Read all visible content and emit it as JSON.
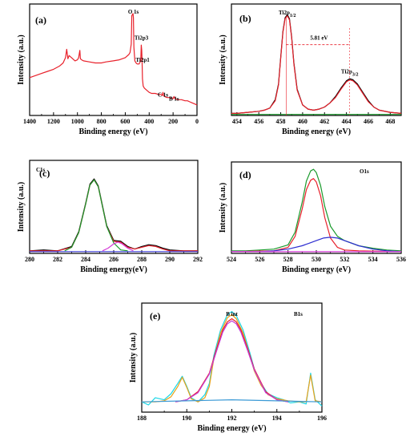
{
  "chart_data": [
    {
      "type": "line",
      "panel_label": "(a)",
      "xlabel": "Binding energy (eV)",
      "ylabel": "Intensity (a.u.)",
      "xlim": [
        1400,
        0
      ],
      "x_ticks": [
        1400,
        1200,
        1000,
        800,
        600,
        400,
        200,
        0
      ],
      "ylim": [
        0,
        100
      ],
      "annotations": [
        {
          "text": "O 1s",
          "x": 532,
          "y": 97
        },
        {
          "text": "Ti2p3",
          "x": 465,
          "y": 72
        },
        {
          "text": "Ti2p1",
          "x": 455,
          "y": 51
        },
        {
          "text": "C 1s",
          "x": 285,
          "y": 18
        },
        {
          "text": "B 1s",
          "x": 192,
          "y": 14
        }
      ],
      "series": [
        {
          "color": "#e8212b",
          "x": [
            1400,
            1350,
            1300,
            1250,
            1200,
            1150,
            1120,
            1100,
            1090,
            1080,
            1070,
            1050,
            1020,
            1000,
            990,
            980,
            975,
            965,
            950,
            900,
            850,
            800,
            760,
            700,
            650,
            600,
            570,
            560,
            550,
            545,
            535,
            532,
            528,
            520,
            510,
            500,
            485,
            470,
            466,
            462,
            460,
            458,
            456,
            450,
            440,
            420,
            400,
            380,
            350,
            320,
            300,
            290,
            285,
            280,
            270,
            250,
            230,
            200,
            192,
            185,
            160,
            130,
            100,
            80,
            60,
            40,
            20,
            0
          ],
          "y": [
            36,
            38,
            40,
            42,
            44,
            47,
            50,
            55,
            63,
            54,
            57,
            55,
            52,
            53,
            55,
            62,
            54,
            53,
            52,
            51,
            50,
            50,
            51,
            52,
            53,
            55,
            58,
            60,
            68,
            95,
            97,
            93,
            65,
            52,
            50,
            49,
            49,
            52,
            67,
            62,
            55,
            46,
            35,
            28,
            26,
            24,
            22,
            21,
            21,
            20,
            20,
            19,
            22,
            19,
            18,
            17,
            17,
            16,
            18,
            16,
            15,
            15,
            14,
            14,
            13,
            12,
            11,
            10
          ]
        }
      ]
    },
    {
      "type": "line",
      "panel_label": "(b)",
      "xlabel": "Binding energy (eV)",
      "ylabel": "Intensity (a.u.)",
      "xlim": [
        453.5,
        469
      ],
      "x_ticks": [
        454,
        456,
        458,
        460,
        462,
        464,
        466,
        468
      ],
      "ylim": [
        0,
        100
      ],
      "annotations": [
        {
          "text": "Ti2p",
          "sub": "1/2",
          "x": 458.6,
          "y": 96
        },
        {
          "text": "Ti2p",
          "sub": "3/2",
          "x": 464.3,
          "y": 40
        },
        {
          "text": "5.81 eV",
          "x": 461.5,
          "y": 72
        }
      ],
      "spacing_arrow": {
        "from": 458.5,
        "to": 464.3,
        "y": 72
      },
      "series": [
        {
          "color": "#000000",
          "x": [
            453.5,
            454,
            455,
            456,
            456.5,
            457,
            457.5,
            457.8,
            458,
            458.2,
            458.4,
            458.6,
            458.8,
            459,
            459.2,
            459.5,
            460,
            460.5,
            461,
            461.5,
            462,
            462.5,
            463,
            463.5,
            464,
            464.3,
            464.6,
            465,
            465.5,
            466,
            466.5,
            467,
            468,
            469
          ],
          "y": [
            2,
            2,
            3,
            4,
            5,
            7,
            15,
            30,
            55,
            80,
            93,
            96,
            92,
            75,
            50,
            25,
            10,
            6,
            5,
            6,
            8,
            12,
            18,
            26,
            33,
            35,
            34,
            30,
            22,
            14,
            8,
            5,
            3,
            2
          ]
        },
        {
          "color": "#e8212b",
          "x": [
            453.5,
            454,
            455,
            456,
            456.5,
            457,
            457.5,
            457.8,
            458,
            458.2,
            458.4,
            458.6,
            458.8,
            459,
            459.2,
            459.5,
            460,
            460.5,
            461,
            461.5,
            462,
            462.5,
            463,
            463.5,
            464,
            464.3,
            464.6,
            465,
            465.5,
            466,
            466.5,
            467,
            468,
            469
          ],
          "y": [
            2,
            2,
            3,
            4,
            5,
            7,
            14,
            29,
            54,
            79,
            92,
            95,
            91,
            74,
            49,
            24,
            10,
            6,
            5,
            6,
            8,
            12,
            17,
            25,
            32,
            34,
            33,
            29,
            21,
            13,
            8,
            5,
            3,
            2
          ]
        },
        {
          "color": "#1a9a2c",
          "x": [
            453.5,
            469
          ],
          "y": [
            1,
            1
          ]
        }
      ]
    },
    {
      "type": "line",
      "panel_label": "(c)",
      "title_inside": "C1s",
      "xlabel": "Binding energy(eV)",
      "ylabel": "Intensity (a.u.)",
      "xlim": [
        280,
        292
      ],
      "x_ticks": [
        280,
        282,
        284,
        286,
        288,
        290,
        292
      ],
      "ylim": [
        0,
        100
      ],
      "series": [
        {
          "color": "#000000",
          "x": [
            280,
            281,
            282,
            283,
            283.5,
            284,
            284.3,
            284.6,
            284.9,
            285.2,
            285.5,
            286,
            286.5,
            287,
            287.5,
            288,
            288.5,
            289,
            289.5,
            290,
            291,
            292
          ],
          "y": [
            3,
            4,
            3,
            8,
            25,
            58,
            80,
            86,
            78,
            55,
            32,
            15,
            14,
            8,
            5,
            8,
            10,
            9,
            6,
            4,
            3,
            3
          ]
        },
        {
          "color": "#e8212b",
          "x": [
            280,
            281,
            282,
            283,
            283.5,
            284,
            284.3,
            284.6,
            284.9,
            285.2,
            285.5,
            286,
            286.5,
            287,
            287.5,
            288,
            288.5,
            289,
            289.5,
            290,
            291,
            292
          ],
          "y": [
            3,
            3,
            3,
            7,
            24,
            57,
            79,
            85,
            77,
            54,
            31,
            14,
            13,
            7,
            5,
            7,
            9,
            8,
            5,
            3,
            3,
            3
          ]
        },
        {
          "color": "#1a9a2c",
          "x": [
            282.5,
            283,
            283.5,
            284,
            284.3,
            284.6,
            284.9,
            285.2,
            285.5,
            286,
            286.5,
            287
          ],
          "y": [
            3,
            7,
            24,
            57,
            79,
            85,
            77,
            54,
            31,
            12,
            4,
            3
          ]
        },
        {
          "color": "#d43bd6",
          "x": [
            285.2,
            285.6,
            286,
            286.3,
            286.6,
            287,
            287.4
          ],
          "y": [
            3,
            6,
            11,
            13,
            11,
            6,
            3
          ]
        },
        {
          "color": "#3b3bd6",
          "x": [
            280,
            292
          ],
          "y": [
            2,
            2
          ]
        }
      ]
    },
    {
      "type": "line",
      "panel_label": "(d)",
      "title_inside": "O1s",
      "xlabel": "Binding energy (eV)",
      "ylabel": "Intensity (a.u.)",
      "xlim": [
        524,
        536
      ],
      "x_ticks": [
        524,
        526,
        528,
        530,
        532,
        534,
        536
      ],
      "ylim": [
        0,
        100
      ],
      "series": [
        {
          "color": "#1a9a2c",
          "x": [
            524,
            525,
            526,
            527,
            528,
            528.5,
            529,
            529.3,
            529.6,
            529.8,
            530,
            530.3,
            530.6,
            531,
            531.5,
            532,
            533,
            534,
            535,
            536
          ],
          "y": [
            3,
            3,
            4,
            5,
            10,
            25,
            60,
            85,
            97,
            99,
            95,
            80,
            55,
            32,
            20,
            15,
            9,
            6,
            4,
            3
          ]
        },
        {
          "color": "#e8212b",
          "x": [
            524,
            527,
            528,
            528.5,
            529,
            529.3,
            529.6,
            529.8,
            530,
            530.3,
            530.6,
            531,
            531.5,
            532,
            533,
            536
          ],
          "y": [
            2,
            3,
            7,
            20,
            52,
            75,
            86,
            88,
            84,
            68,
            42,
            18,
            7,
            4,
            3,
            2
          ]
        },
        {
          "color": "#2e2ed1",
          "x": [
            524,
            526,
            527,
            528,
            529,
            529.5,
            530,
            530.5,
            531,
            531.5,
            532,
            533,
            534,
            535,
            536
          ],
          "y": [
            2,
            2,
            3,
            5,
            9,
            12,
            15,
            18,
            19,
            18,
            15,
            9,
            5,
            3,
            2
          ]
        },
        {
          "color": "#d43bd6",
          "x": [
            524,
            536
          ],
          "y": [
            2,
            2
          ]
        }
      ]
    },
    {
      "type": "line",
      "panel_label": "(e)",
      "title_inside": "B1s",
      "peak_label": "B int",
      "xlabel": "Binding energy (eV)",
      "ylabel": "Intensity (a.u.)",
      "xlim": [
        188,
        196
      ],
      "x_ticks": [
        188,
        190,
        192,
        194,
        196
      ],
      "ylim": [
        0,
        100
      ],
      "series": [
        {
          "color": "#19d6e6",
          "x": [
            188,
            188.3,
            188.6,
            189,
            189.3,
            189.6,
            189.8,
            190,
            190.2,
            190.5,
            190.8,
            191,
            191.2,
            191.5,
            191.8,
            192,
            192.2,
            192.5,
            192.8,
            193,
            193.3,
            193.6,
            194,
            194.3,
            194.6,
            195,
            195.3,
            195.5,
            195.7,
            196
          ],
          "y": [
            10,
            7,
            14,
            12,
            18,
            28,
            35,
            25,
            14,
            10,
            17,
            28,
            55,
            80,
            95,
            98,
            94,
            80,
            58,
            42,
            28,
            18,
            14,
            12,
            9,
            10,
            8,
            38,
            12,
            6
          ]
        },
        {
          "color": "#e8a21a",
          "x": [
            188,
            188.6,
            189,
            189.3,
            189.6,
            189.8,
            190,
            190.2,
            190.5,
            190.8,
            191,
            191.2,
            191.5,
            191.8,
            192,
            192.2,
            192.5,
            192.8,
            193,
            193.3,
            193.6,
            194,
            194.5,
            195,
            195.3,
            195.5,
            195.7,
            196
          ],
          "y": [
            10,
            10,
            11,
            15,
            25,
            34,
            24,
            13,
            10,
            14,
            25,
            52,
            77,
            92,
            95,
            91,
            77,
            55,
            40,
            26,
            17,
            13,
            11,
            10,
            10,
            36,
            11,
            10
          ]
        },
        {
          "color": "#e8212b",
          "x": [
            189.5,
            190,
            190.5,
            191,
            191.3,
            191.6,
            191.8,
            192,
            192.2,
            192.4,
            192.7,
            193,
            193.5,
            194,
            194.5
          ],
          "y": [
            10,
            12,
            20,
            38,
            60,
            80,
            88,
            91,
            88,
            80,
            62,
            42,
            20,
            12,
            10
          ]
        },
        {
          "color": "#c43bd6",
          "x": [
            189.5,
            190,
            190.5,
            191,
            191.3,
            191.6,
            191.8,
            192,
            192.2,
            192.4,
            192.7,
            193,
            193.5,
            194,
            194.5
          ],
          "y": [
            10,
            12,
            19,
            37,
            58,
            78,
            86,
            89,
            86,
            78,
            60,
            41,
            19,
            12,
            10
          ]
        },
        {
          "color": "#3b9ad6",
          "x": [
            188,
            190,
            192,
            194,
            196
          ],
          "y": [
            10,
            11,
            12,
            11,
            10
          ]
        }
      ]
    }
  ]
}
